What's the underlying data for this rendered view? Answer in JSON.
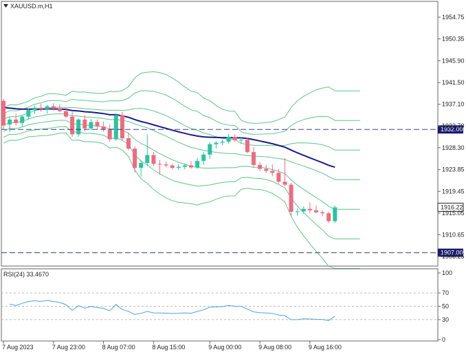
{
  "header": {
    "menu_icon": "triangle-down-icon",
    "symbol_title": "XAUUSD.m,H1"
  },
  "indicator": {
    "rsi_label": "RSI(24) 33.4670"
  },
  "price_axis": {
    "ticks": [
      "1954.75",
      "1950.35",
      "1945.90",
      "1941.50",
      "1937.10",
      "1932.70",
      "1928.30",
      "1923.85",
      "1919.45",
      "1915.05",
      "1910.65",
      "1906.25"
    ],
    "levels": [
      1954.75,
      1950.35,
      1945.9,
      1941.5,
      1937.1,
      1932.7,
      1928.3,
      1923.85,
      1919.45,
      1915.05,
      1910.65,
      1906.25
    ]
  },
  "rsi_axis": {
    "ticks": [
      "100",
      "70",
      "50",
      "30",
      "0"
    ],
    "levels": [
      100,
      70,
      50,
      30,
      0
    ]
  },
  "time_axis": {
    "labels": [
      "7 Aug 2023",
      "7 Aug 23:00",
      "8 Aug 07:00",
      "8 Aug 15:00",
      "9 Aug 00:00",
      "9 Aug 08:00",
      "9 Aug 16:00"
    ]
  },
  "markers": {
    "current_price": "1916.22",
    "current_price_value": 1916.22,
    "level_upper": "1932.00",
    "level_upper_value": 1932.0,
    "level_lower": "1907.00",
    "level_lower_value": 1907.0
  },
  "colors": {
    "bull": "#26c6a0",
    "bear": "#f06a7e",
    "band": "#5cc58a",
    "ma": "#1a1a8c",
    "level_line": "#3a3a8a",
    "tag_bg": "#1a1a6e",
    "rsi_line": "#4aa3df"
  },
  "chart_data": {
    "type": "candlestick",
    "symbol": "XAUUSD.m",
    "timeframe": "H1",
    "ylim": [
      1904.5,
      1959
    ],
    "candles": [
      [
        1937.8,
        1938.2,
        1932.0,
        1932.8
      ],
      [
        1933.0,
        1934.5,
        1931.5,
        1934.0
      ],
      [
        1934.0,
        1935.2,
        1932.8,
        1933.3
      ],
      [
        1933.3,
        1934.9,
        1932.5,
        1934.6
      ],
      [
        1934.6,
        1936.3,
        1934.0,
        1935.9
      ],
      [
        1935.9,
        1936.8,
        1935.1,
        1936.4
      ],
      [
        1936.4,
        1937.2,
        1935.6,
        1936.1
      ],
      [
        1936.1,
        1937.0,
        1935.2,
        1936.7
      ],
      [
        1936.7,
        1937.3,
        1935.8,
        1936.2
      ],
      [
        1936.2,
        1937.1,
        1935.5,
        1935.7
      ],
      [
        1935.7,
        1936.4,
        1934.3,
        1934.6
      ],
      [
        1934.6,
        1935.6,
        1930.5,
        1931.0
      ],
      [
        1931.0,
        1934.3,
        1930.5,
        1934.0
      ],
      [
        1934.0,
        1934.9,
        1931.6,
        1932.2
      ],
      [
        1932.2,
        1934.1,
        1931.8,
        1933.5
      ],
      [
        1933.5,
        1934.0,
        1932.0,
        1932.6
      ],
      [
        1932.6,
        1933.6,
        1931.5,
        1932.0
      ],
      [
        1932.0,
        1933.0,
        1929.5,
        1930.0
      ],
      [
        1930.0,
        1935.3,
        1929.7,
        1934.9
      ],
      [
        1934.9,
        1935.6,
        1929.8,
        1930.2
      ],
      [
        1930.2,
        1931.3,
        1927.8,
        1928.1
      ],
      [
        1928.1,
        1928.6,
        1923.3,
        1924.2
      ],
      [
        1924.2,
        1925.8,
        1922.4,
        1925.2
      ],
      [
        1925.2,
        1931.0,
        1924.5,
        1926.8
      ],
      [
        1926.8,
        1927.4,
        1924.6,
        1925.0
      ],
      [
        1925.0,
        1925.8,
        1922.8,
        1924.9
      ],
      [
        1924.9,
        1925.5,
        1924.3,
        1924.7
      ],
      [
        1924.7,
        1925.0,
        1923.9,
        1924.2
      ],
      [
        1924.2,
        1924.9,
        1923.8,
        1924.4
      ],
      [
        1924.4,
        1925.1,
        1923.9,
        1924.7
      ],
      [
        1924.7,
        1925.6,
        1924.0,
        1924.3
      ],
      [
        1924.3,
        1926.2,
        1924.0,
        1925.6
      ],
      [
        1925.6,
        1927.4,
        1924.8,
        1926.9
      ],
      [
        1926.9,
        1929.4,
        1926.0,
        1929.0
      ],
      [
        1929.0,
        1929.6,
        1928.1,
        1929.3
      ],
      [
        1929.3,
        1929.9,
        1928.8,
        1929.5
      ],
      [
        1929.5,
        1931.1,
        1929.1,
        1930.5
      ],
      [
        1930.5,
        1931.0,
        1929.5,
        1929.8
      ],
      [
        1929.8,
        1930.4,
        1929.1,
        1929.9
      ],
      [
        1929.9,
        1930.3,
        1927.2,
        1927.4
      ],
      [
        1927.4,
        1928.4,
        1924.2,
        1924.8
      ],
      [
        1924.8,
        1925.4,
        1923.6,
        1924.0
      ],
      [
        1924.0,
        1924.8,
        1923.2,
        1923.6
      ],
      [
        1923.6,
        1924.9,
        1922.5,
        1923.2
      ],
      [
        1923.2,
        1924.0,
        1921.0,
        1921.4
      ],
      [
        1921.4,
        1926.2,
        1920.5,
        1920.8
      ],
      [
        1920.8,
        1921.2,
        1914.5,
        1915.3
      ],
      [
        1915.3,
        1916.0,
        1914.5,
        1915.4
      ],
      [
        1915.4,
        1916.4,
        1914.9,
        1915.9
      ],
      [
        1915.9,
        1917.2,
        1915.0,
        1915.6
      ],
      [
        1915.6,
        1916.6,
        1915.0,
        1915.2
      ],
      [
        1915.2,
        1915.6,
        1914.4,
        1915.0
      ],
      [
        1915.0,
        1915.3,
        1913.0,
        1913.4
      ],
      [
        1913.4,
        1916.6,
        1913.0,
        1916.2
      ]
    ]
  }
}
